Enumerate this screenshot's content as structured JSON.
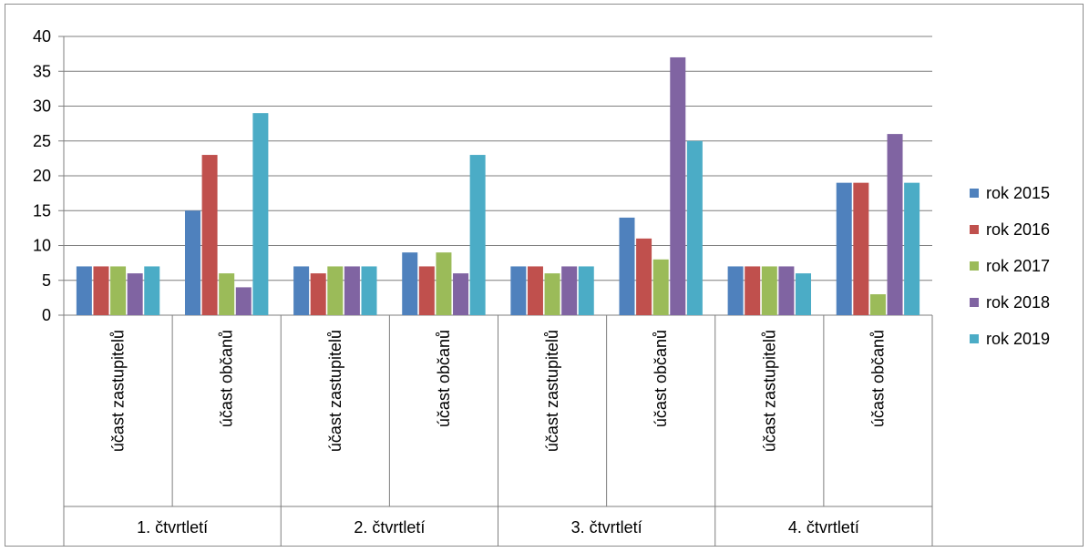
{
  "chart_data": {
    "type": "bar",
    "groups": [
      {
        "label": "1. čtvrtletí",
        "subcategories": [
          "účast zastupitelů",
          "účast občanů"
        ]
      },
      {
        "label": "2. čtvrtletí",
        "subcategories": [
          "účast zastupitelů",
          "účast občanů"
        ]
      },
      {
        "label": "3. čtvrtletí",
        "subcategories": [
          "účast zastupitelů",
          "účast občanů"
        ]
      },
      {
        "label": "4. čtvrtletí",
        "subcategories": [
          "účast zastupitelů",
          "účast občanů"
        ]
      }
    ],
    "categories": [
      "1. čtvrtletí / účast zastupitelů",
      "1. čtvrtletí / účast občanů",
      "2. čtvrtletí / účast zastupitelů",
      "2. čtvrtletí / účast občanů",
      "3. čtvrtletí / účast zastupitelů",
      "3. čtvrtletí / účast občanů",
      "4. čtvrtletí / účast zastupitelů",
      "4. čtvrtletí / účast občanů"
    ],
    "series": [
      {
        "name": "rok 2015",
        "color": "#4F81BD",
        "values": [
          7,
          15,
          7,
          9,
          7,
          14,
          7,
          19
        ]
      },
      {
        "name": "rok 2016",
        "color": "#C0504D",
        "values": [
          7,
          23,
          6,
          7,
          7,
          11,
          7,
          19
        ]
      },
      {
        "name": "rok 2017",
        "color": "#9BBB59",
        "values": [
          7,
          6,
          7,
          9,
          6,
          8,
          7,
          3
        ]
      },
      {
        "name": "rok 2018",
        "color": "#8064A2",
        "values": [
          6,
          4,
          7,
          6,
          7,
          37,
          7,
          26
        ]
      },
      {
        "name": "rok 2019",
        "color": "#4BACC6",
        "values": [
          7,
          29,
          7,
          23,
          7,
          25,
          6,
          19
        ]
      }
    ],
    "ylim": [
      0,
      40
    ],
    "yticks": [
      0,
      5,
      10,
      15,
      20,
      25,
      30,
      35,
      40
    ],
    "grid": true,
    "legend_position": "right",
    "title": "",
    "xlabel": "",
    "ylabel": ""
  }
}
